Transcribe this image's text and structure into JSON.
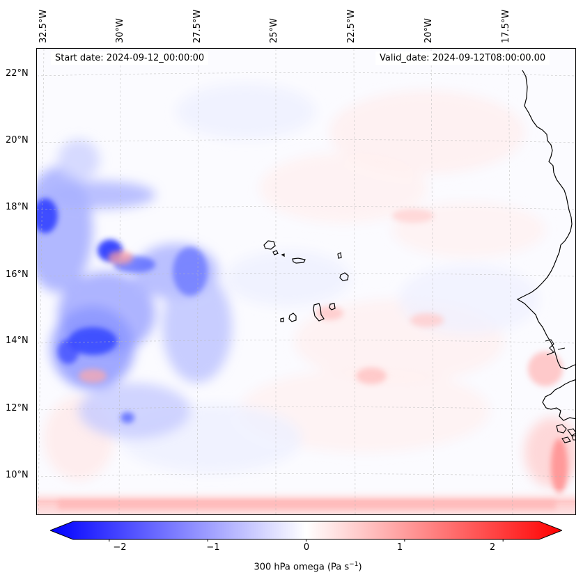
{
  "map": {
    "start_date": "Start date: 2024-09-12_00:00:00",
    "valid_date": "Valid_date: 2024-09-12T08:00:00.00",
    "lon_labels": [
      "32.5°W",
      "30°W",
      "27.5°W",
      "25°W",
      "22.5°W",
      "20°W",
      "17.5°W"
    ],
    "lat_labels": [
      "22°N",
      "20°N",
      "18°N",
      "16°N",
      "14°N",
      "12°N",
      "10°N"
    ],
    "colormap": "bwr",
    "colors": {
      "negative": "#0000ff",
      "zero": "#ffffff",
      "positive": "#ff0000",
      "coastline": "#000000"
    }
  },
  "colorbar": {
    "ticks": [
      "−2",
      "−1",
      "0",
      "1",
      "2"
    ],
    "range": [
      -2.6,
      2.6
    ],
    "label_prefix": "300 hPa omega (Pa s",
    "label_exponent": "−1",
    "label_suffix": ")"
  }
}
